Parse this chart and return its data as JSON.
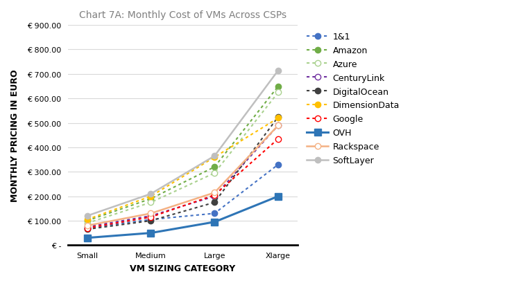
{
  "title": "Chart 7A: Monthly Cost of VMs Across CSPs",
  "xlabel": "VM SIZING CATEGORY",
  "ylabel": "MONTHLY PRICING IN EURO",
  "categories": [
    "Small",
    "Medium",
    "Large",
    "Xlarge"
  ],
  "ylim": [
    0,
    900
  ],
  "yticks": [
    0,
    100,
    200,
    300,
    400,
    500,
    600,
    700,
    800,
    900
  ],
  "series": [
    {
      "name": "1&1",
      "values": [
        70,
        105,
        130,
        330
      ],
      "color": "#4472C4",
      "linestyle": "dotted",
      "marker": "o",
      "markerfacecolor": "#4472C4",
      "linewidth": 1.5,
      "markersize": 6
    },
    {
      "name": "Amazon",
      "values": [
        100,
        190,
        320,
        650
      ],
      "color": "#70AD47",
      "linestyle": "dotted",
      "marker": "o",
      "markerfacecolor": "#70AD47",
      "linewidth": 1.5,
      "markersize": 6
    },
    {
      "name": "Azure",
      "values": [
        90,
        175,
        295,
        625
      ],
      "color": "#A9D18E",
      "linestyle": "dotted",
      "marker": "o",
      "markerfacecolor": "white",
      "linewidth": 1.5,
      "markersize": 6
    },
    {
      "name": "CenturyLink",
      "values": [
        75,
        120,
        200,
        490
      ],
      "color": "#7030A0",
      "linestyle": "dotted",
      "marker": "o",
      "markerfacecolor": "white",
      "linewidth": 1.5,
      "markersize": 6
    },
    {
      "name": "DigitalOcean",
      "values": [
        65,
        100,
        175,
        525
      ],
      "color": "#404040",
      "linestyle": "dotted",
      "marker": "o",
      "markerfacecolor": "#404040",
      "linewidth": 1.5,
      "markersize": 6
    },
    {
      "name": "DimensionData",
      "values": [
        105,
        200,
        360,
        520
      ],
      "color": "#FFC000",
      "linestyle": "dotted",
      "marker": "o",
      "markerfacecolor": "#FFC000",
      "linewidth": 1.5,
      "markersize": 6
    },
    {
      "name": "Google",
      "values": [
        70,
        115,
        205,
        435
      ],
      "color": "#FF0000",
      "linestyle": "dotted",
      "marker": "o",
      "markerfacecolor": "white",
      "linewidth": 1.5,
      "markersize": 6
    },
    {
      "name": "OVH",
      "values": [
        30,
        50,
        95,
        200
      ],
      "color": "#2E75B6",
      "linestyle": "solid",
      "marker": "s",
      "markerfacecolor": "#2E75B6",
      "linewidth": 2.2,
      "markersize": 7
    },
    {
      "name": "Rackspace",
      "values": [
        80,
        130,
        215,
        490
      ],
      "color": "#F4B183",
      "linestyle": "solid",
      "marker": "o",
      "markerfacecolor": "white",
      "linewidth": 1.8,
      "markersize": 6
    },
    {
      "name": "SoftLayer",
      "values": [
        120,
        210,
        365,
        715
      ],
      "color": "#BFBFBF",
      "linestyle": "solid",
      "marker": "o",
      "markerfacecolor": "#BFBFBF",
      "linewidth": 1.8,
      "markersize": 6
    }
  ],
  "background_color": "#FFFFFF",
  "grid_color": "#D9D9D9",
  "title_fontsize": 10,
  "axis_label_fontsize": 9,
  "tick_fontsize": 8,
  "legend_fontsize": 9
}
